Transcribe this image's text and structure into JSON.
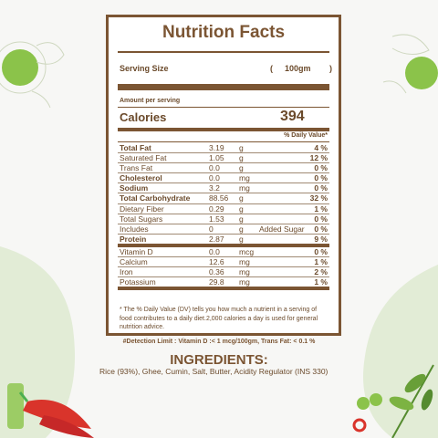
{
  "label": {
    "title": "Nutrition Facts",
    "serving_size_label": "Serving Size",
    "serving_open": "(",
    "serving_size_value": "100gm",
    "serving_close": ")",
    "amount_per_serving": "Amount per serving",
    "calories_label": "Calories",
    "calories_value": "394",
    "daily_value_header": "% Daily Value*",
    "nutrients": [
      {
        "name": "Total Fat",
        "amount": "3.19",
        "unit": "g",
        "extra": "",
        "dv": "4 %"
      },
      {
        "name": "Saturated Fat",
        "amount": "1.05",
        "unit": "g",
        "extra": "",
        "dv": "12 %"
      },
      {
        "name": "Trans Fat",
        "amount": "0.0",
        "unit": "g",
        "extra": "",
        "dv": "0 %"
      },
      {
        "name": "Cholesterol",
        "amount": "0.0",
        "unit": "mg",
        "extra": "",
        "dv": "0 %"
      },
      {
        "name": "Sodium",
        "amount": "3.2",
        "unit": "mg",
        "extra": "",
        "dv": "0 %"
      },
      {
        "name": "Total Carbohydrate",
        "amount": "88.56",
        "unit": "g",
        "extra": "",
        "dv": "32 %"
      },
      {
        "name": "Dietary Fiber",
        "amount": "0.29",
        "unit": "g",
        "extra": "",
        "dv": "1 %"
      },
      {
        "name": "Total Sugars",
        "amount": "1.53",
        "unit": "g",
        "extra": "",
        "dv": "0 %"
      },
      {
        "name": "Includes",
        "amount": "0",
        "unit": "g",
        "extra": "Added Sugar",
        "dv": "0 %"
      },
      {
        "name": "Protein",
        "amount": "2.87",
        "unit": "g",
        "extra": "",
        "dv": "9 %"
      },
      {
        "name": "Vitamin D",
        "amount": "0.0",
        "unit": "mcg",
        "extra": "",
        "dv": "0 %"
      },
      {
        "name": "Calcium",
        "amount": "12.6",
        "unit": "mg",
        "extra": "",
        "dv": "1 %"
      },
      {
        "name": "Iron",
        "amount": "0.36",
        "unit": "mg",
        "extra": "",
        "dv": "2 %"
      },
      {
        "name": "Potassium",
        "amount": "29.8",
        "unit": "mg",
        "extra": "",
        "dv": "1 %"
      }
    ],
    "footnote": "* The % Daily Value (DV) tells you how much a nutrient in a serving of food contributes to a daily diet.2,000 calories a day is used for general nutrition advice."
  },
  "detection_limit": "#Detection Limit : Vitamin D :< 1 mcg/100gm, Trans Fat: < 0.1 %",
  "ingredients": {
    "title": "INGREDIENTS:",
    "text": "Rice (93%), Ghee, Cumin, Salt, Butter, Acidity Regulator (INS 330)"
  },
  "colors": {
    "brown": "#7b5533",
    "green": "#8bc34a",
    "red": "#d9342b"
  }
}
